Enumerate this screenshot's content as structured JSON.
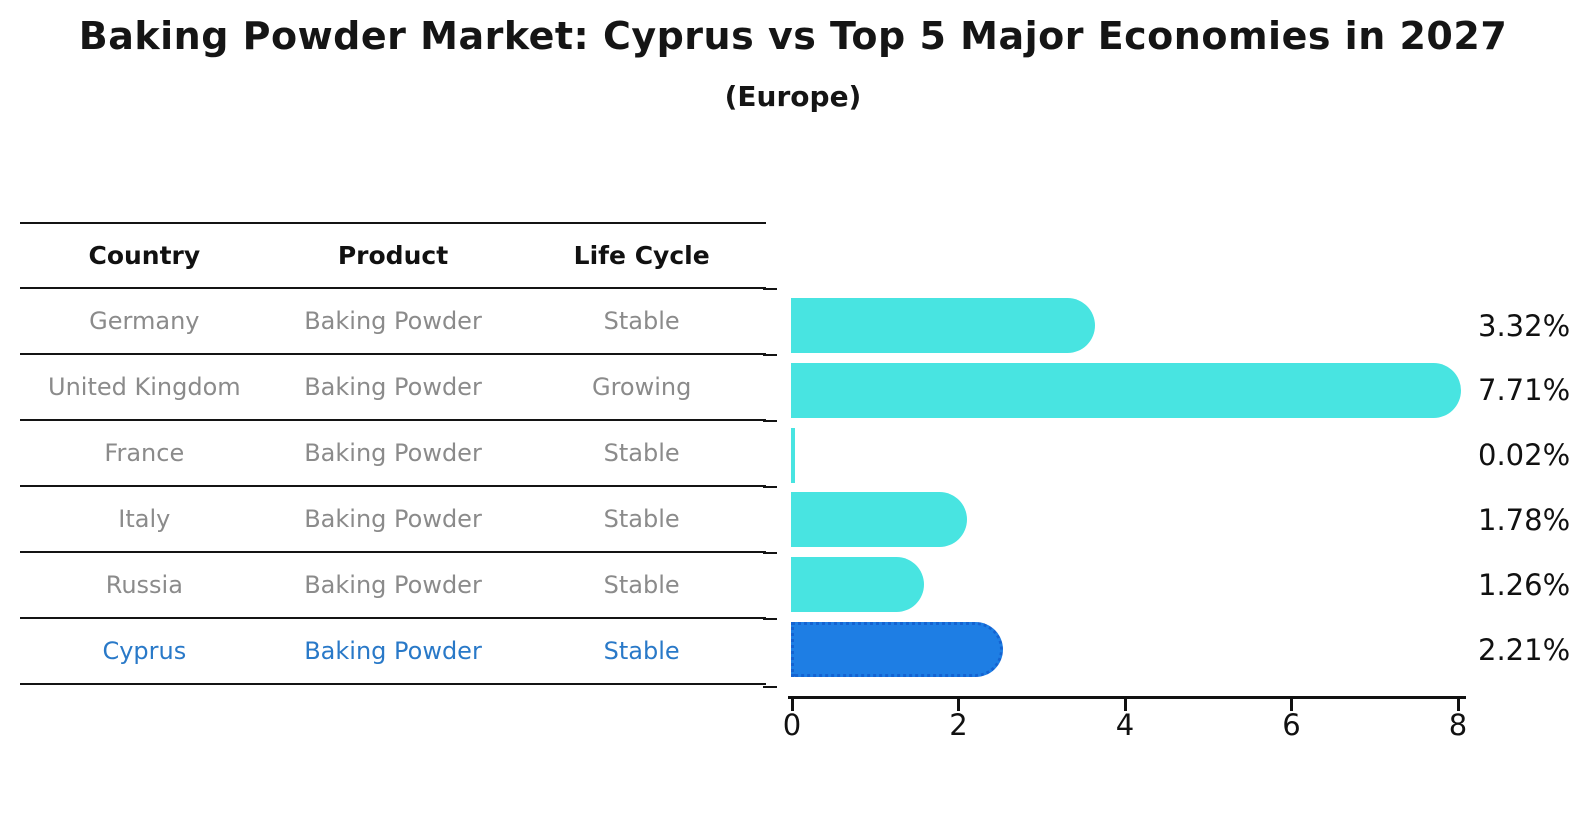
{
  "title": "Baking Powder Market: Cyprus vs Top 5 Major Economies in 2027",
  "subtitle": "(Europe)",
  "table": {
    "headers": [
      "Country",
      "Product",
      "Life Cycle"
    ],
    "rows": [
      {
        "country": "Germany",
        "product": "Baking Powder",
        "life_cycle": "Stable",
        "highlight": false
      },
      {
        "country": "United Kingdom",
        "product": "Baking Powder",
        "life_cycle": "Growing",
        "highlight": false
      },
      {
        "country": "France",
        "product": "Baking Powder",
        "life_cycle": "Stable",
        "highlight": false
      },
      {
        "country": "Italy",
        "product": "Baking Powder",
        "life_cycle": "Stable",
        "highlight": false
      },
      {
        "country": "Russia",
        "product": "Baking Powder",
        "life_cycle": "Stable",
        "highlight": false
      },
      {
        "country": "Cyprus",
        "product": "Baking Powder",
        "life_cycle": "Stable",
        "highlight": true
      }
    ]
  },
  "chart_data": {
    "type": "bar",
    "orientation": "horizontal",
    "title": "Baking Powder Market: Cyprus vs Top 5 Major Economies in 2027",
    "subtitle": "(Europe)",
    "categories": [
      "Germany",
      "United Kingdom",
      "France",
      "Italy",
      "Russia",
      "Cyprus"
    ],
    "values": [
      3.32,
      7.71,
      0.02,
      1.78,
      1.26,
      2.21
    ],
    "value_labels": [
      "3.32%",
      "7.71%",
      "0.02%",
      "1.78%",
      "1.26%",
      "2.21%"
    ],
    "xlim": [
      0,
      8
    ],
    "x_ticks": [
      0,
      2,
      4,
      6,
      8
    ],
    "grid": false,
    "legend": "none",
    "highlight_index": 5,
    "colors": {
      "bar": "#48e4e1",
      "highlight_bar": "#1e7ee4",
      "highlight_border": "#1463d1",
      "highlight_text": "#2979c8",
      "cell_text": "#8b8b8b",
      "axis": "#111111"
    }
  }
}
